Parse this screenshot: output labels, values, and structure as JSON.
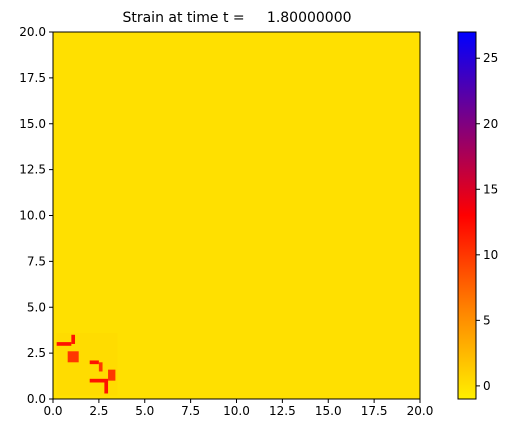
{
  "chart_data": {
    "type": "heatmap",
    "title": "Strain at time t =     1.80000000",
    "xlabel": "",
    "ylabel": "",
    "xlim": [
      0,
      20
    ],
    "ylim": [
      0,
      20
    ],
    "x_ticks": [
      "0.0",
      "2.5",
      "5.0",
      "7.5",
      "10.0",
      "12.5",
      "15.0",
      "17.5",
      "20.0"
    ],
    "y_ticks": [
      "0.0",
      "2.5",
      "5.0",
      "7.5",
      "10.0",
      "12.5",
      "15.0",
      "17.5",
      "20.0"
    ],
    "colorbar": {
      "range": [
        -1,
        27
      ],
      "ticks": [
        "0",
        "5",
        "10",
        "15",
        "20",
        "25"
      ],
      "tick_values": [
        0,
        5,
        10,
        15,
        20,
        25
      ],
      "colors": [
        "#fff000",
        "#ff8000",
        "#ff0000",
        "#800080",
        "#0000ff"
      ]
    },
    "background_value": 0,
    "features": [
      {
        "x": [
          0.2,
          3.5
        ],
        "y": [
          0.2,
          3.6
        ],
        "value": 0.6
      },
      {
        "x": [
          0.2,
          1.0
        ],
        "y": [
          2.9,
          3.1
        ],
        "value": 12
      },
      {
        "x": [
          1.0,
          1.2
        ],
        "y": [
          3.0,
          3.5
        ],
        "value": 12
      },
      {
        "x": [
          0.8,
          1.4
        ],
        "y": [
          2.0,
          2.6
        ],
        "value": 10
      },
      {
        "x": [
          2.0,
          2.5
        ],
        "y": [
          1.9,
          2.1
        ],
        "value": 12
      },
      {
        "x": [
          2.5,
          2.7
        ],
        "y": [
          1.5,
          2.0
        ],
        "value": 10
      },
      {
        "x": [
          2.0,
          3.0
        ],
        "y": [
          0.9,
          1.1
        ],
        "value": 12
      },
      {
        "x": [
          2.8,
          3.0
        ],
        "y": [
          0.3,
          1.0
        ],
        "value": 12
      },
      {
        "x": [
          3.0,
          3.4
        ],
        "y": [
          1.0,
          1.6
        ],
        "value": 10
      }
    ]
  }
}
